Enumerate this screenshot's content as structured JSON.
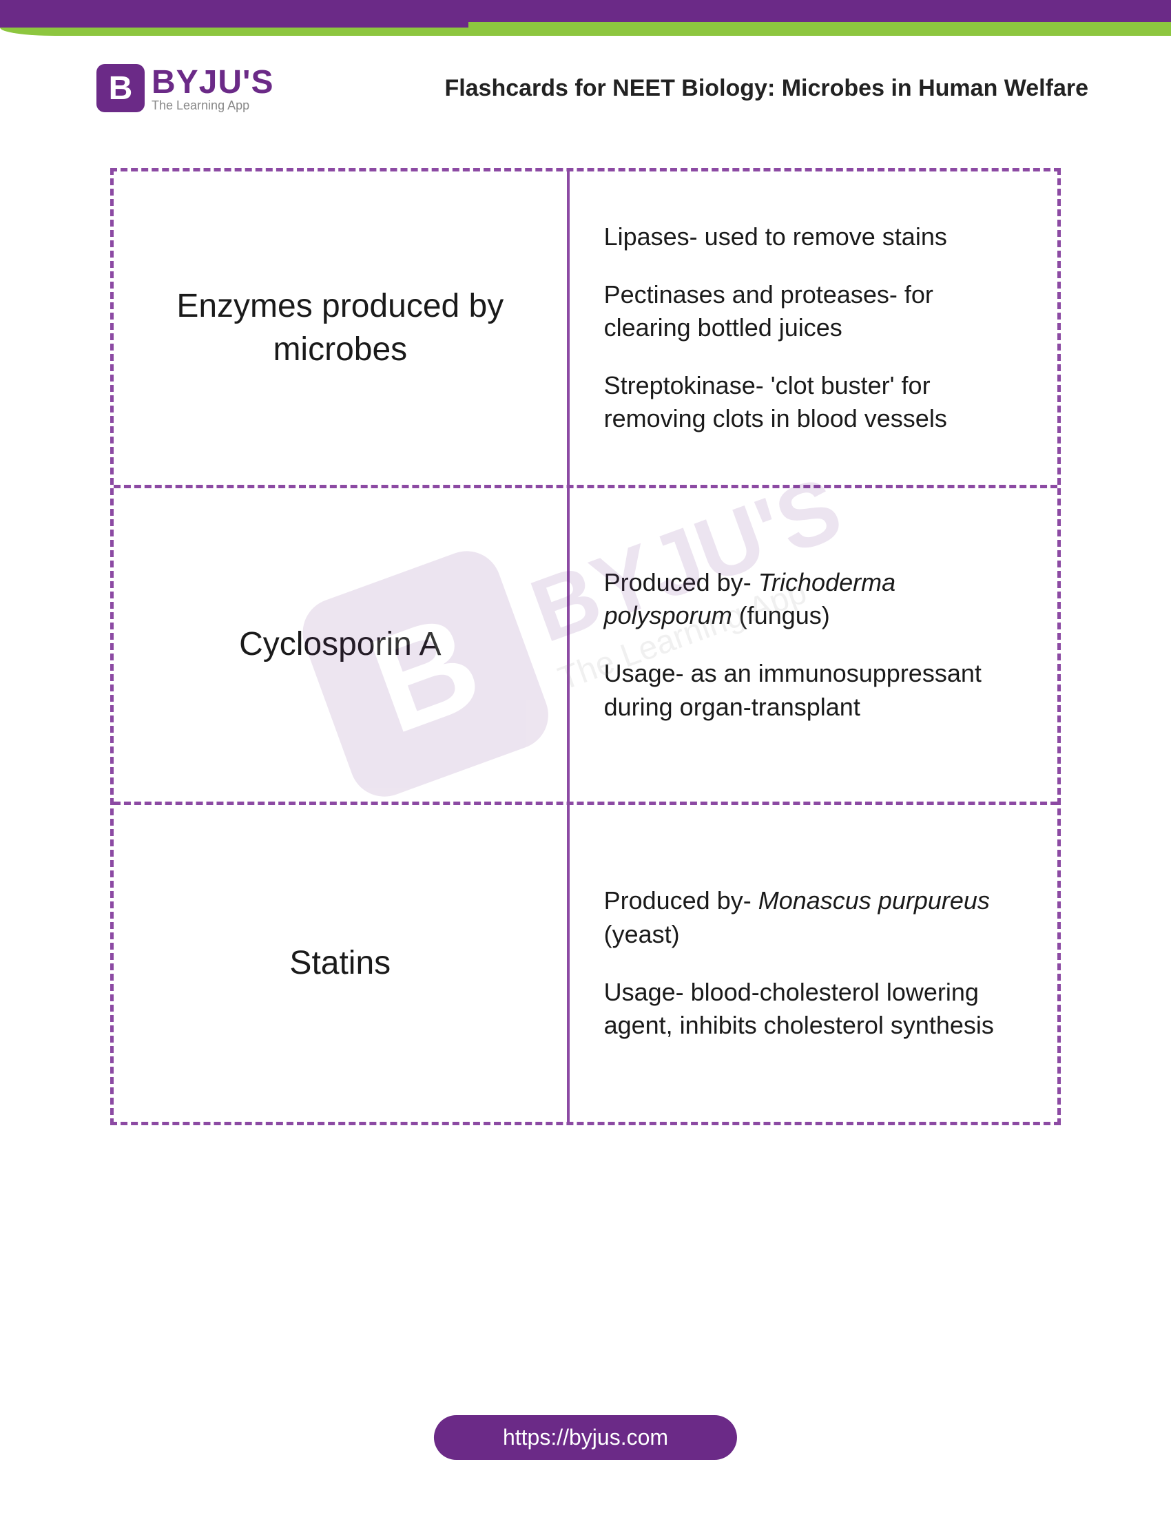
{
  "brand": {
    "icon_letter": "B",
    "name": "BYJU'S",
    "tagline": "The Learning App"
  },
  "page_title": "Flashcards for NEET Biology: Microbes in Human Welfare",
  "colors": {
    "primary": "#6b2a87",
    "accent": "#8dc63f",
    "dash": "#8c4aa3",
    "text": "#1a1a1a",
    "bg": "#ffffff"
  },
  "flashcards": [
    {
      "term": "Enzymes produced by microbes",
      "points": [
        "Lipases- used to remove stains",
        "Pectinases and proteases- for clearing bottled juices",
        "Streptokinase- 'clot buster' for removing clots in blood vessels"
      ]
    },
    {
      "term": "Cyclosporin A",
      "points_html": [
        "Produced by- <em>Trichoderma polysporum</em> (fungus)",
        "Usage- as an immunosuppressant during organ-transplant"
      ]
    },
    {
      "term": "Statins",
      "points_html": [
        "Produced by- <em>Monascus purpureus</em> (yeast)",
        "Usage- blood-cholesterol lowering agent, inhibits cholesterol synthesis"
      ]
    }
  ],
  "watermark": {
    "icon_letter": "B",
    "name": "BYJU'S",
    "tagline": "The Learning App"
  },
  "footer_url": "https://byjus.com"
}
